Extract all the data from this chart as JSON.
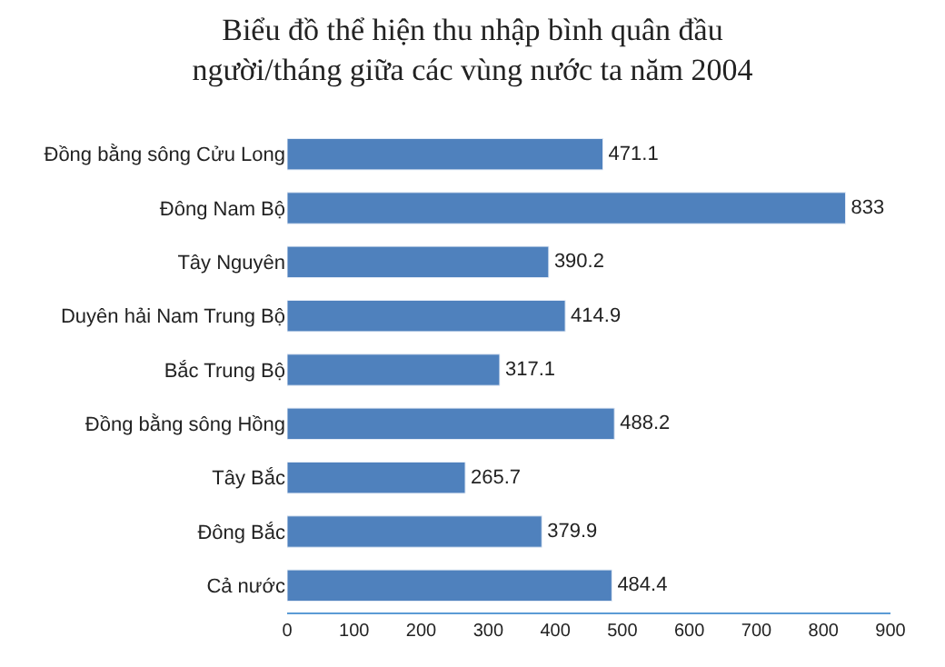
{
  "chart_data": {
    "type": "bar",
    "orientation": "horizontal",
    "title": "Biểu đồ thể hiện thu nhập bình quân đầu người/tháng giữa các vùng nước ta năm 2004",
    "categories": [
      "Đồng bằng sông Cửu Long",
      "Đông Nam Bộ",
      "Tây Nguyên",
      "Duyên hải Nam Trung Bộ",
      "Bắc Trung Bộ",
      "Đồng bằng sông Hồng",
      "Tây Bắc",
      "Đông Bắc",
      "Cả nước"
    ],
    "values": [
      471.1,
      833,
      390.2,
      414.9,
      317.1,
      488.2,
      265.7,
      379.9,
      484.4
    ],
    "color": "#4f81bd",
    "xlim": [
      0,
      900
    ],
    "xticks": [
      0,
      100,
      200,
      300,
      400,
      500,
      600,
      700,
      800,
      900
    ],
    "data_labels": true
  }
}
